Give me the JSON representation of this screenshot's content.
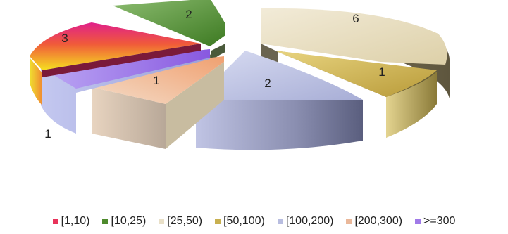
{
  "chart_data": {
    "type": "pie",
    "style": "3d-exploded",
    "title": "",
    "legend_position": "bottom",
    "categories": [
      "[1,10)",
      "[10,25)",
      "[25,50)",
      "[50,100)",
      "[100,200)",
      "[200,300)",
      ">=300"
    ],
    "values": [
      3,
      2,
      6,
      1,
      2,
      1,
      1
    ],
    "data_labels": [
      "3",
      "2",
      "6",
      "1",
      "2",
      "1",
      "1"
    ],
    "colors": [
      "#e8325a",
      "#4e8a2c",
      "#e9e0c8",
      "#c8b050",
      "#b8bde0",
      "#eab89a",
      "#a07ae8"
    ]
  }
}
